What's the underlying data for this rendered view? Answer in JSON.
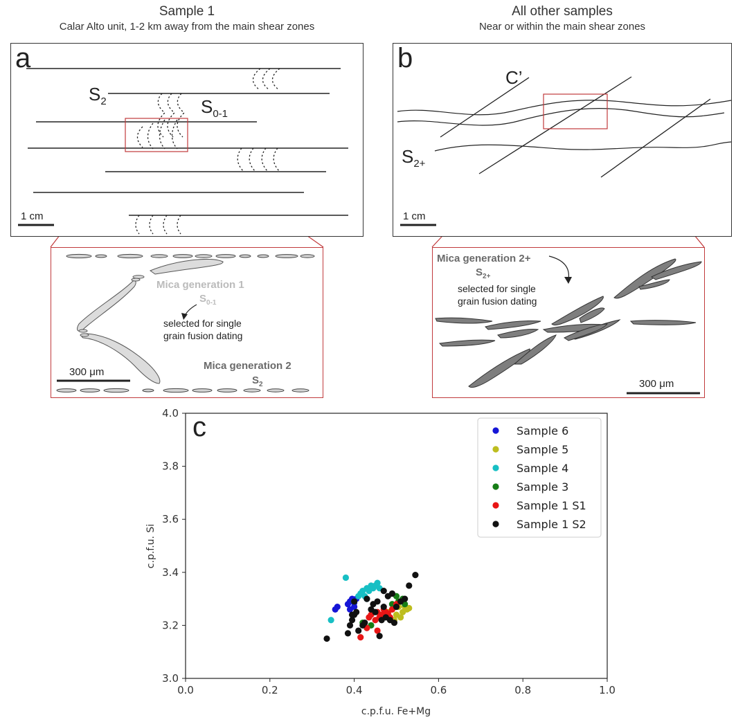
{
  "header_left": {
    "title": "Sample 1",
    "subtitle": "Calar Alto unit, 1-2 km away from the main shear zones"
  },
  "header_right": {
    "title": "All other samples",
    "subtitle": "Near or within the main shear zones"
  },
  "panel_a": {
    "letter": "a",
    "s2_main": "S",
    "s2_sub": "2",
    "s01_main": "S",
    "s01_sub": "0-1",
    "scale": "1 cm"
  },
  "panel_b": {
    "letter": "b",
    "c_prime": "C’",
    "s2p_main": "S",
    "s2p_sub": "2+",
    "scale": "1 cm"
  },
  "zoom_a": {
    "gen1_label": "Mica generation 1",
    "gen1_sub_main": "S",
    "gen1_sub_sub": "0-1",
    "note_line1": "selected for single",
    "note_line2": "grain fusion dating",
    "gen2_label": "Mica generation 2",
    "gen2_sub_main": "S",
    "gen2_sub_sub": "2",
    "scale": "300 μm"
  },
  "zoom_b": {
    "gen_label": "Mica generation 2+",
    "gen_sub_main": "S",
    "gen_sub_sub": "2+",
    "note_line1": "selected for single",
    "note_line2": "grain fusion dating",
    "scale": "300 μm"
  },
  "chart_data": {
    "type": "scatter",
    "panel_letter": "c",
    "xlabel": "c.p.f.u. Fe+Mg",
    "ylabel": "c.p.f.u. Si",
    "xlim": [
      0.0,
      1.0
    ],
    "ylim": [
      3.0,
      4.0
    ],
    "xticks": [
      "0.0",
      "0.2",
      "0.4",
      "0.6",
      "0.8",
      "1.0"
    ],
    "yticks": [
      "3.0",
      "3.2",
      "3.4",
      "3.6",
      "3.8",
      "4.0"
    ],
    "legend_position": "top-right",
    "grid": false,
    "series": [
      {
        "name": "Sample 6",
        "color": "#1515d6",
        "points": [
          [
            0.355,
            3.26
          ],
          [
            0.36,
            3.27
          ],
          [
            0.385,
            3.28
          ],
          [
            0.39,
            3.29
          ],
          [
            0.395,
            3.3
          ],
          [
            0.4,
            3.285
          ],
          [
            0.405,
            3.3
          ],
          [
            0.39,
            3.26
          ],
          [
            0.4,
            3.27
          ]
        ]
      },
      {
        "name": "Sample 5",
        "color": "#bdbd1f",
        "points": [
          [
            0.48,
            3.25
          ],
          [
            0.49,
            3.26
          ],
          [
            0.5,
            3.24
          ],
          [
            0.51,
            3.23
          ],
          [
            0.515,
            3.25
          ],
          [
            0.52,
            3.27
          ],
          [
            0.525,
            3.26
          ],
          [
            0.53,
            3.265
          ],
          [
            0.505,
            3.27
          ],
          [
            0.495,
            3.22
          ],
          [
            0.47,
            3.23
          ]
        ]
      },
      {
        "name": "Sample 4",
        "color": "#17bfc4",
        "points": [
          [
            0.345,
            3.22
          ],
          [
            0.38,
            3.38
          ],
          [
            0.41,
            3.31
          ],
          [
            0.415,
            3.32
          ],
          [
            0.42,
            3.33
          ],
          [
            0.425,
            3.31
          ],
          [
            0.43,
            3.34
          ],
          [
            0.435,
            3.33
          ],
          [
            0.44,
            3.35
          ],
          [
            0.445,
            3.34
          ],
          [
            0.45,
            3.35
          ],
          [
            0.455,
            3.36
          ],
          [
            0.46,
            3.34
          ],
          [
            0.43,
            3.3
          ],
          [
            0.4,
            3.29
          ]
        ]
      },
      {
        "name": "Sample 3",
        "color": "#167d16",
        "points": [
          [
            0.42,
            3.21
          ],
          [
            0.44,
            3.2
          ],
          [
            0.49,
            3.28
          ],
          [
            0.5,
            3.31
          ],
          [
            0.505,
            3.29
          ],
          [
            0.515,
            3.3
          ],
          [
            0.52,
            3.28
          ],
          [
            0.51,
            3.29
          ]
        ]
      },
      {
        "name": "Sample 1 S1",
        "color": "#e81515",
        "points": [
          [
            0.415,
            3.155
          ],
          [
            0.43,
            3.19
          ],
          [
            0.435,
            3.23
          ],
          [
            0.44,
            3.24
          ],
          [
            0.45,
            3.22
          ],
          [
            0.455,
            3.25
          ],
          [
            0.46,
            3.23
          ],
          [
            0.465,
            3.24
          ],
          [
            0.47,
            3.26
          ],
          [
            0.475,
            3.25
          ],
          [
            0.48,
            3.245
          ],
          [
            0.485,
            3.23
          ],
          [
            0.49,
            3.26
          ],
          [
            0.5,
            3.28
          ],
          [
            0.455,
            3.18
          ]
        ]
      },
      {
        "name": "Sample 1 S2",
        "color": "#111111",
        "points": [
          [
            0.335,
            3.15
          ],
          [
            0.39,
            3.2
          ],
          [
            0.395,
            3.22
          ],
          [
            0.4,
            3.24
          ],
          [
            0.405,
            3.25
          ],
          [
            0.41,
            3.18
          ],
          [
            0.42,
            3.2
          ],
          [
            0.425,
            3.21
          ],
          [
            0.43,
            3.3
          ],
          [
            0.44,
            3.26
          ],
          [
            0.445,
            3.28
          ],
          [
            0.45,
            3.25
          ],
          [
            0.46,
            3.16
          ],
          [
            0.465,
            3.22
          ],
          [
            0.47,
            3.33
          ],
          [
            0.475,
            3.23
          ],
          [
            0.48,
            3.31
          ],
          [
            0.485,
            3.22
          ],
          [
            0.49,
            3.32
          ],
          [
            0.495,
            3.21
          ],
          [
            0.5,
            3.27
          ],
          [
            0.51,
            3.29
          ],
          [
            0.52,
            3.3
          ],
          [
            0.53,
            3.35
          ],
          [
            0.545,
            3.39
          ],
          [
            0.4,
            3.29
          ],
          [
            0.395,
            3.24
          ],
          [
            0.385,
            3.17
          ],
          [
            0.47,
            3.27
          ],
          [
            0.455,
            3.29
          ]
        ]
      }
    ]
  }
}
